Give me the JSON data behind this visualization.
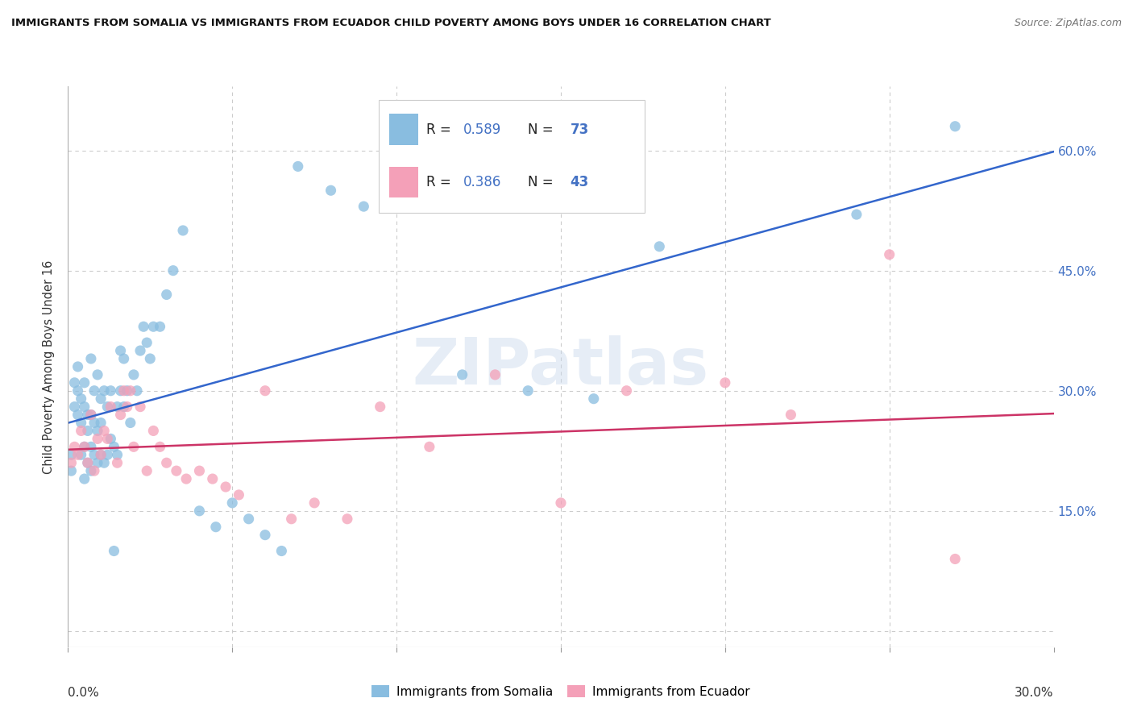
{
  "title": "IMMIGRANTS FROM SOMALIA VS IMMIGRANTS FROM ECUADOR CHILD POVERTY AMONG BOYS UNDER 16 CORRELATION CHART",
  "source": "Source: ZipAtlas.com",
  "ylabel": "Child Poverty Among Boys Under 16",
  "xlim": [
    0.0,
    0.3
  ],
  "ylim": [
    -0.02,
    0.68
  ],
  "yticks": [
    0.0,
    0.15,
    0.3,
    0.45,
    0.6
  ],
  "ytick_labels": [
    "",
    "15.0%",
    "30.0%",
    "45.0%",
    "60.0%"
  ],
  "grid_color": "#cccccc",
  "background_color": "#ffffff",
  "somalia_color": "#89bde0",
  "ecuador_color": "#f4a0b8",
  "somalia_line_color": "#3366cc",
  "ecuador_line_color": "#cc3366",
  "somalia_R": 0.589,
  "somalia_N": 73,
  "ecuador_R": 0.386,
  "ecuador_N": 43,
  "watermark": "ZIPatlas",
  "somalia_x": [
    0.001,
    0.001,
    0.002,
    0.002,
    0.003,
    0.003,
    0.003,
    0.004,
    0.004,
    0.004,
    0.005,
    0.005,
    0.005,
    0.005,
    0.006,
    0.006,
    0.006,
    0.007,
    0.007,
    0.007,
    0.007,
    0.008,
    0.008,
    0.008,
    0.009,
    0.009,
    0.009,
    0.01,
    0.01,
    0.01,
    0.011,
    0.011,
    0.012,
    0.012,
    0.013,
    0.013,
    0.014,
    0.014,
    0.015,
    0.015,
    0.016,
    0.016,
    0.017,
    0.017,
    0.018,
    0.019,
    0.02,
    0.021,
    0.022,
    0.023,
    0.024,
    0.025,
    0.026,
    0.028,
    0.03,
    0.032,
    0.035,
    0.04,
    0.045,
    0.05,
    0.055,
    0.06,
    0.065,
    0.07,
    0.08,
    0.09,
    0.1,
    0.12,
    0.14,
    0.16,
    0.18,
    0.24,
    0.27
  ],
  "somalia_y": [
    0.2,
    0.22,
    0.31,
    0.28,
    0.27,
    0.3,
    0.33,
    0.22,
    0.26,
    0.29,
    0.19,
    0.23,
    0.28,
    0.31,
    0.21,
    0.25,
    0.27,
    0.2,
    0.23,
    0.27,
    0.34,
    0.22,
    0.26,
    0.3,
    0.21,
    0.25,
    0.32,
    0.22,
    0.26,
    0.29,
    0.21,
    0.3,
    0.22,
    0.28,
    0.24,
    0.3,
    0.23,
    0.1,
    0.22,
    0.28,
    0.3,
    0.35,
    0.28,
    0.34,
    0.3,
    0.26,
    0.32,
    0.3,
    0.35,
    0.38,
    0.36,
    0.34,
    0.38,
    0.38,
    0.42,
    0.45,
    0.5,
    0.15,
    0.13,
    0.16,
    0.14,
    0.12,
    0.1,
    0.58,
    0.55,
    0.53,
    0.56,
    0.32,
    0.3,
    0.29,
    0.48,
    0.52,
    0.63
  ],
  "ecuador_x": [
    0.001,
    0.002,
    0.003,
    0.004,
    0.005,
    0.006,
    0.007,
    0.008,
    0.009,
    0.01,
    0.011,
    0.012,
    0.013,
    0.015,
    0.016,
    0.017,
    0.018,
    0.019,
    0.02,
    0.022,
    0.024,
    0.026,
    0.028,
    0.03,
    0.033,
    0.036,
    0.04,
    0.044,
    0.048,
    0.052,
    0.06,
    0.068,
    0.075,
    0.085,
    0.095,
    0.11,
    0.13,
    0.15,
    0.17,
    0.2,
    0.22,
    0.25,
    0.27
  ],
  "ecuador_y": [
    0.21,
    0.23,
    0.22,
    0.25,
    0.23,
    0.21,
    0.27,
    0.2,
    0.24,
    0.22,
    0.25,
    0.24,
    0.28,
    0.21,
    0.27,
    0.3,
    0.28,
    0.3,
    0.23,
    0.28,
    0.2,
    0.25,
    0.23,
    0.21,
    0.2,
    0.19,
    0.2,
    0.19,
    0.18,
    0.17,
    0.3,
    0.14,
    0.16,
    0.14,
    0.28,
    0.23,
    0.32,
    0.16,
    0.3,
    0.31,
    0.27,
    0.47,
    0.09
  ]
}
